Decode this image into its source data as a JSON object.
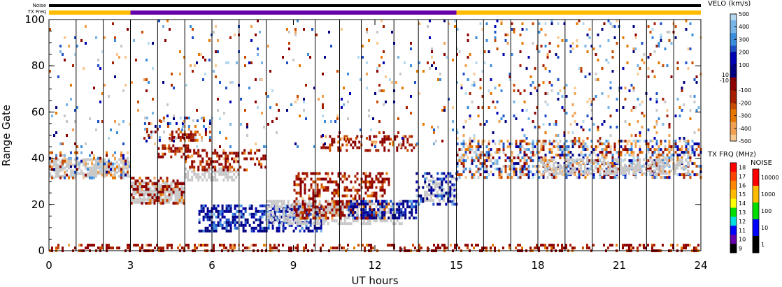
{
  "chart_data": {
    "type": "heatmap",
    "xlabel": "UT hours",
    "ylabel": "Range Gate",
    "xlim": [
      0,
      24
    ],
    "ylim": [
      0,
      100
    ],
    "xticks": [
      0,
      3,
      6,
      9,
      12,
      15,
      18,
      21,
      24
    ],
    "yticks": [
      0,
      20,
      40,
      60,
      80,
      100
    ],
    "scan_boundaries_ut": [
      1.0,
      2.0,
      3.0,
      4.0,
      5.0,
      6.0,
      7.0,
      8.0,
      9.8,
      10.7,
      11.5,
      12.7,
      13.6,
      14.7,
      15.0,
      16.0,
      17.0,
      18.0,
      19.0,
      20.0,
      21.0,
      22.0,
      23.0
    ],
    "top_strips": {
      "noise_label": "Noise",
      "txfreq_label": "TX Freq",
      "txfreq_segments": [
        {
          "start": 0,
          "end": 3,
          "band_mhz": 15
        },
        {
          "start": 3,
          "end": 15,
          "band_mhz": 10
        },
        {
          "start": 15,
          "end": 24,
          "band_mhz": 15
        }
      ]
    },
    "velocity_colorbar": {
      "title": "VELO (km/s)",
      "range": [
        -500,
        500
      ],
      "ticks": [
        500,
        400,
        300,
        200,
        100,
        10,
        -10,
        -100,
        -200,
        -300,
        -400,
        -500
      ],
      "ground_scatter_color": "#c8c8c8"
    },
    "txfreq_colorbar": {
      "title": "TX FRQ (MHz)",
      "ticks": [
        "18",
        "17",
        "16",
        "15",
        "14",
        "13",
        "12",
        "11",
        "10",
        "9"
      ],
      "colors": [
        "#ff0000",
        "#ff4400",
        "#ff8800",
        "#ffbb00",
        "#ffff00",
        "#00dd00",
        "#00dddd",
        "#0000ff",
        "#6600aa",
        "#000000"
      ]
    },
    "noise_colorbar": {
      "title": "NOISE",
      "ticks": [
        "10000",
        "1000",
        "100",
        "10",
        "1"
      ],
      "colors": [
        "#ff0000",
        "#ffbb00",
        "#00dd00",
        "#0000ff",
        "#000000"
      ]
    },
    "regions": [
      {
        "name": "ground scatter band",
        "type": "ground",
        "x": [
          0,
          3
        ],
        "y": [
          32,
          40
        ],
        "density": 0.7
      },
      {
        "name": "mixed scatter",
        "type": "mixed",
        "x": [
          0,
          3
        ],
        "y": [
          31,
          43
        ],
        "density": 0.3
      },
      {
        "name": "ground scatter",
        "type": "ground",
        "x": [
          3,
          5
        ],
        "y": [
          21,
          30
        ],
        "density": 0.8
      },
      {
        "name": "negative flow",
        "type": "neg",
        "x": [
          3,
          5
        ],
        "y": [
          20,
          32
        ],
        "density": 0.4
      },
      {
        "name": "negative flow",
        "type": "neg",
        "x": [
          4,
          5.2
        ],
        "y": [
          40,
          46
        ],
        "density": 0.5
      },
      {
        "name": "mixed scatter",
        "type": "mixed",
        "x": [
          3.5,
          6
        ],
        "y": [
          48,
          58
        ],
        "density": 0.2
      },
      {
        "name": "negative flow",
        "type": "neg",
        "x": [
          4.5,
          5.5
        ],
        "y": [
          48,
          52
        ],
        "density": 0.6
      },
      {
        "name": "ground scatter",
        "type": "ground",
        "x": [
          5,
          7
        ],
        "y": [
          30,
          36
        ],
        "density": 0.6
      },
      {
        "name": "negative flow",
        "type": "neg",
        "x": [
          5,
          8
        ],
        "y": [
          35,
          44
        ],
        "density": 0.35
      },
      {
        "name": "positive flow",
        "type": "pos",
        "x": [
          5.5,
          10
        ],
        "y": [
          9,
          20
        ],
        "density": 0.55
      },
      {
        "name": "ground scatter",
        "type": "ground",
        "x": [
          8,
          13
        ],
        "y": [
          12,
          22
        ],
        "density": 0.55
      },
      {
        "name": "negative flow",
        "type": "neg",
        "x": [
          9,
          12.5
        ],
        "y": [
          14,
          34
        ],
        "density": 0.45
      },
      {
        "name": "positive flow",
        "type": "pos",
        "x": [
          11,
          13.5
        ],
        "y": [
          14,
          22
        ],
        "density": 0.5
      },
      {
        "name": "negative flow",
        "type": "neg",
        "x": [
          10,
          13.5
        ],
        "y": [
          43,
          50
        ],
        "density": 0.35
      },
      {
        "name": "ground scatter",
        "type": "ground",
        "x": [
          13.8,
          15
        ],
        "y": [
          22,
          32
        ],
        "density": 0.6
      },
      {
        "name": "positive flow",
        "type": "pos",
        "x": [
          13.5,
          15
        ],
        "y": [
          20,
          34
        ],
        "density": 0.35
      },
      {
        "name": "mixed scatter",
        "type": "mixed",
        "x": [
          15,
          24
        ],
        "y": [
          32,
          48
        ],
        "density": 0.5
      },
      {
        "name": "ground scatter",
        "type": "ground",
        "x": [
          18,
          23.5
        ],
        "y": [
          33,
          40
        ],
        "density": 0.5
      },
      {
        "name": "negative flow",
        "type": "neg",
        "x": [
          0,
          24
        ],
        "y": [
          0,
          3
        ],
        "density": 0.35
      },
      {
        "name": "sparse scatter",
        "type": "mixed",
        "x": [
          0,
          15
        ],
        "y": [
          45,
          100
        ],
        "density": 0.04
      },
      {
        "name": "sparse scatter",
        "type": "mixed",
        "x": [
          15,
          24
        ],
        "y": [
          48,
          100
        ],
        "density": 0.08
      }
    ]
  }
}
